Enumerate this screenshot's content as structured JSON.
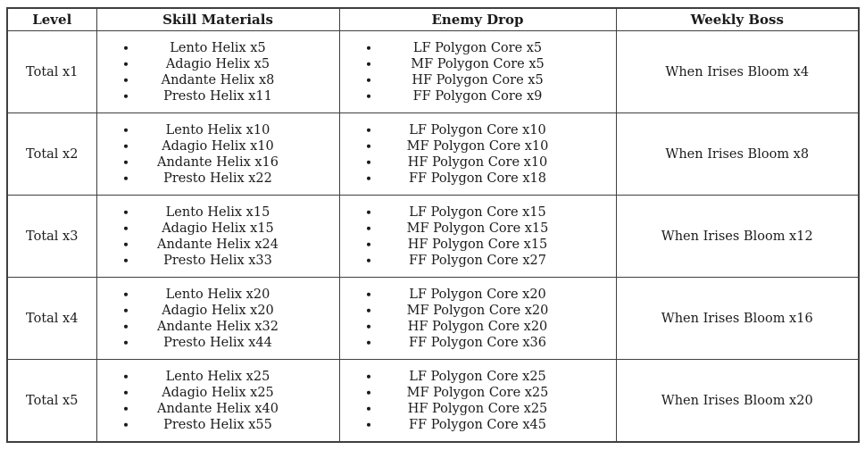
{
  "table": {
    "headers": [
      "Level",
      "Skill Materials",
      "Enemy Drop",
      "Weekly Boss"
    ],
    "rows": [
      {
        "level": "Total x1",
        "skill_materials": [
          "Lento Helix x5",
          "Adagio Helix x5",
          "Andante Helix x8",
          "Presto Helix x11"
        ],
        "enemy_drop": [
          "LF Polygon Core x5",
          "MF Polygon Core x5",
          "HF Polygon Core x5",
          "FF Polygon Core x9"
        ],
        "weekly_boss": "When Irises Bloom x4"
      },
      {
        "level": "Total x2",
        "skill_materials": [
          "Lento Helix x10",
          "Adagio Helix x10",
          "Andante Helix x16",
          "Presto Helix x22"
        ],
        "enemy_drop": [
          "LF Polygon Core x10",
          "MF Polygon Core x10",
          "HF Polygon Core x10",
          "FF Polygon Core x18"
        ],
        "weekly_boss": "When Irises Bloom x8"
      },
      {
        "level": "Total x3",
        "skill_materials": [
          "Lento Helix x15",
          "Adagio Helix x15",
          "Andante Helix x24",
          "Presto Helix x33"
        ],
        "enemy_drop": [
          "LF Polygon Core x15",
          "MF Polygon Core x15",
          "HF Polygon Core x15",
          "FF Polygon Core x27"
        ],
        "weekly_boss": "When Irises Bloom x12"
      },
      {
        "level": "Total x4",
        "skill_materials": [
          "Lento Helix x20",
          "Adagio Helix x20",
          "Andante Helix x32",
          "Presto Helix x44"
        ],
        "enemy_drop": [
          "LF Polygon Core x20",
          "MF Polygon Core x20",
          "HF Polygon Core x20",
          "FF Polygon Core x36"
        ],
        "weekly_boss": "When Irises Bloom x16"
      },
      {
        "level": "Total x5",
        "skill_materials": [
          "Lento Helix x25",
          "Adagio Helix x25",
          "Andante Helix x40",
          "Presto Helix x55"
        ],
        "enemy_drop": [
          "LF Polygon Core x25",
          "MF Polygon Core x25",
          "HF Polygon Core x25",
          "FF Polygon Core x45"
        ],
        "weekly_boss": "When Irises Bloom x20"
      }
    ],
    "colors": {
      "border": "#3f3f3f",
      "text": "#1b1b1b",
      "background": "#ffffff"
    }
  }
}
